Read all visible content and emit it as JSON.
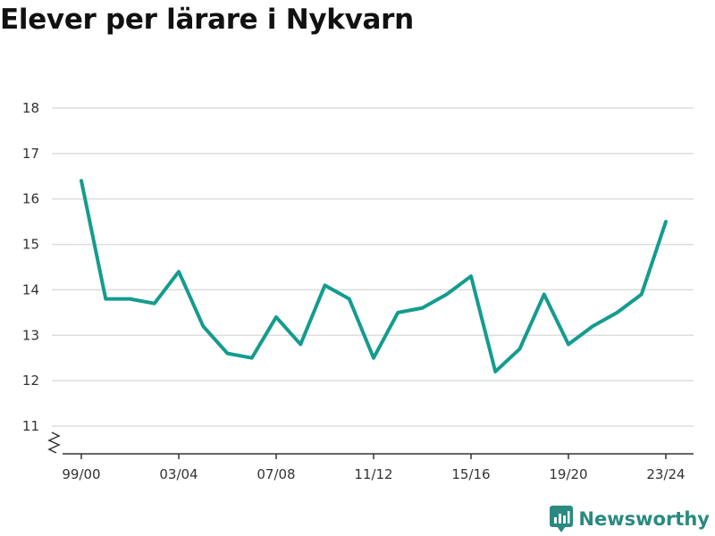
{
  "title": "Elever per lärare i Nykvarn",
  "brand": {
    "name": "Newsworthy",
    "icon": "newsworthy-logo-icon"
  },
  "colors": {
    "line": "#149c8e",
    "brand": "#2a8a80",
    "grid": "#dddddd",
    "axis": "#333333"
  },
  "chart_data": {
    "type": "line",
    "title": "Elever per lärare i Nykvarn",
    "xlabel": "",
    "ylabel": "",
    "ylim": [
      11,
      18
    ],
    "yticks": [
      11,
      12,
      13,
      14,
      15,
      16,
      17,
      18
    ],
    "y_axis_break": true,
    "grid": true,
    "x": [
      "99/00",
      "00/01",
      "01/02",
      "02/03",
      "03/04",
      "04/05",
      "05/06",
      "06/07",
      "07/08",
      "08/09",
      "09/10",
      "10/11",
      "11/12",
      "12/13",
      "13/14",
      "14/15",
      "15/16",
      "16/17",
      "17/18",
      "18/19",
      "19/20",
      "20/21",
      "21/22",
      "22/23",
      "23/24"
    ],
    "xtick_labels": [
      "99/00",
      "03/04",
      "07/08",
      "11/12",
      "15/16",
      "19/20",
      "23/24"
    ],
    "series": [
      {
        "values": [
          16.4,
          13.8,
          13.8,
          13.7,
          14.4,
          13.2,
          12.6,
          12.5,
          13.4,
          12.8,
          14.1,
          13.8,
          12.5,
          13.5,
          13.6,
          13.9,
          14.3,
          12.2,
          12.7,
          13.9,
          12.8,
          13.2,
          13.5,
          13.9,
          15.5
        ]
      }
    ]
  }
}
